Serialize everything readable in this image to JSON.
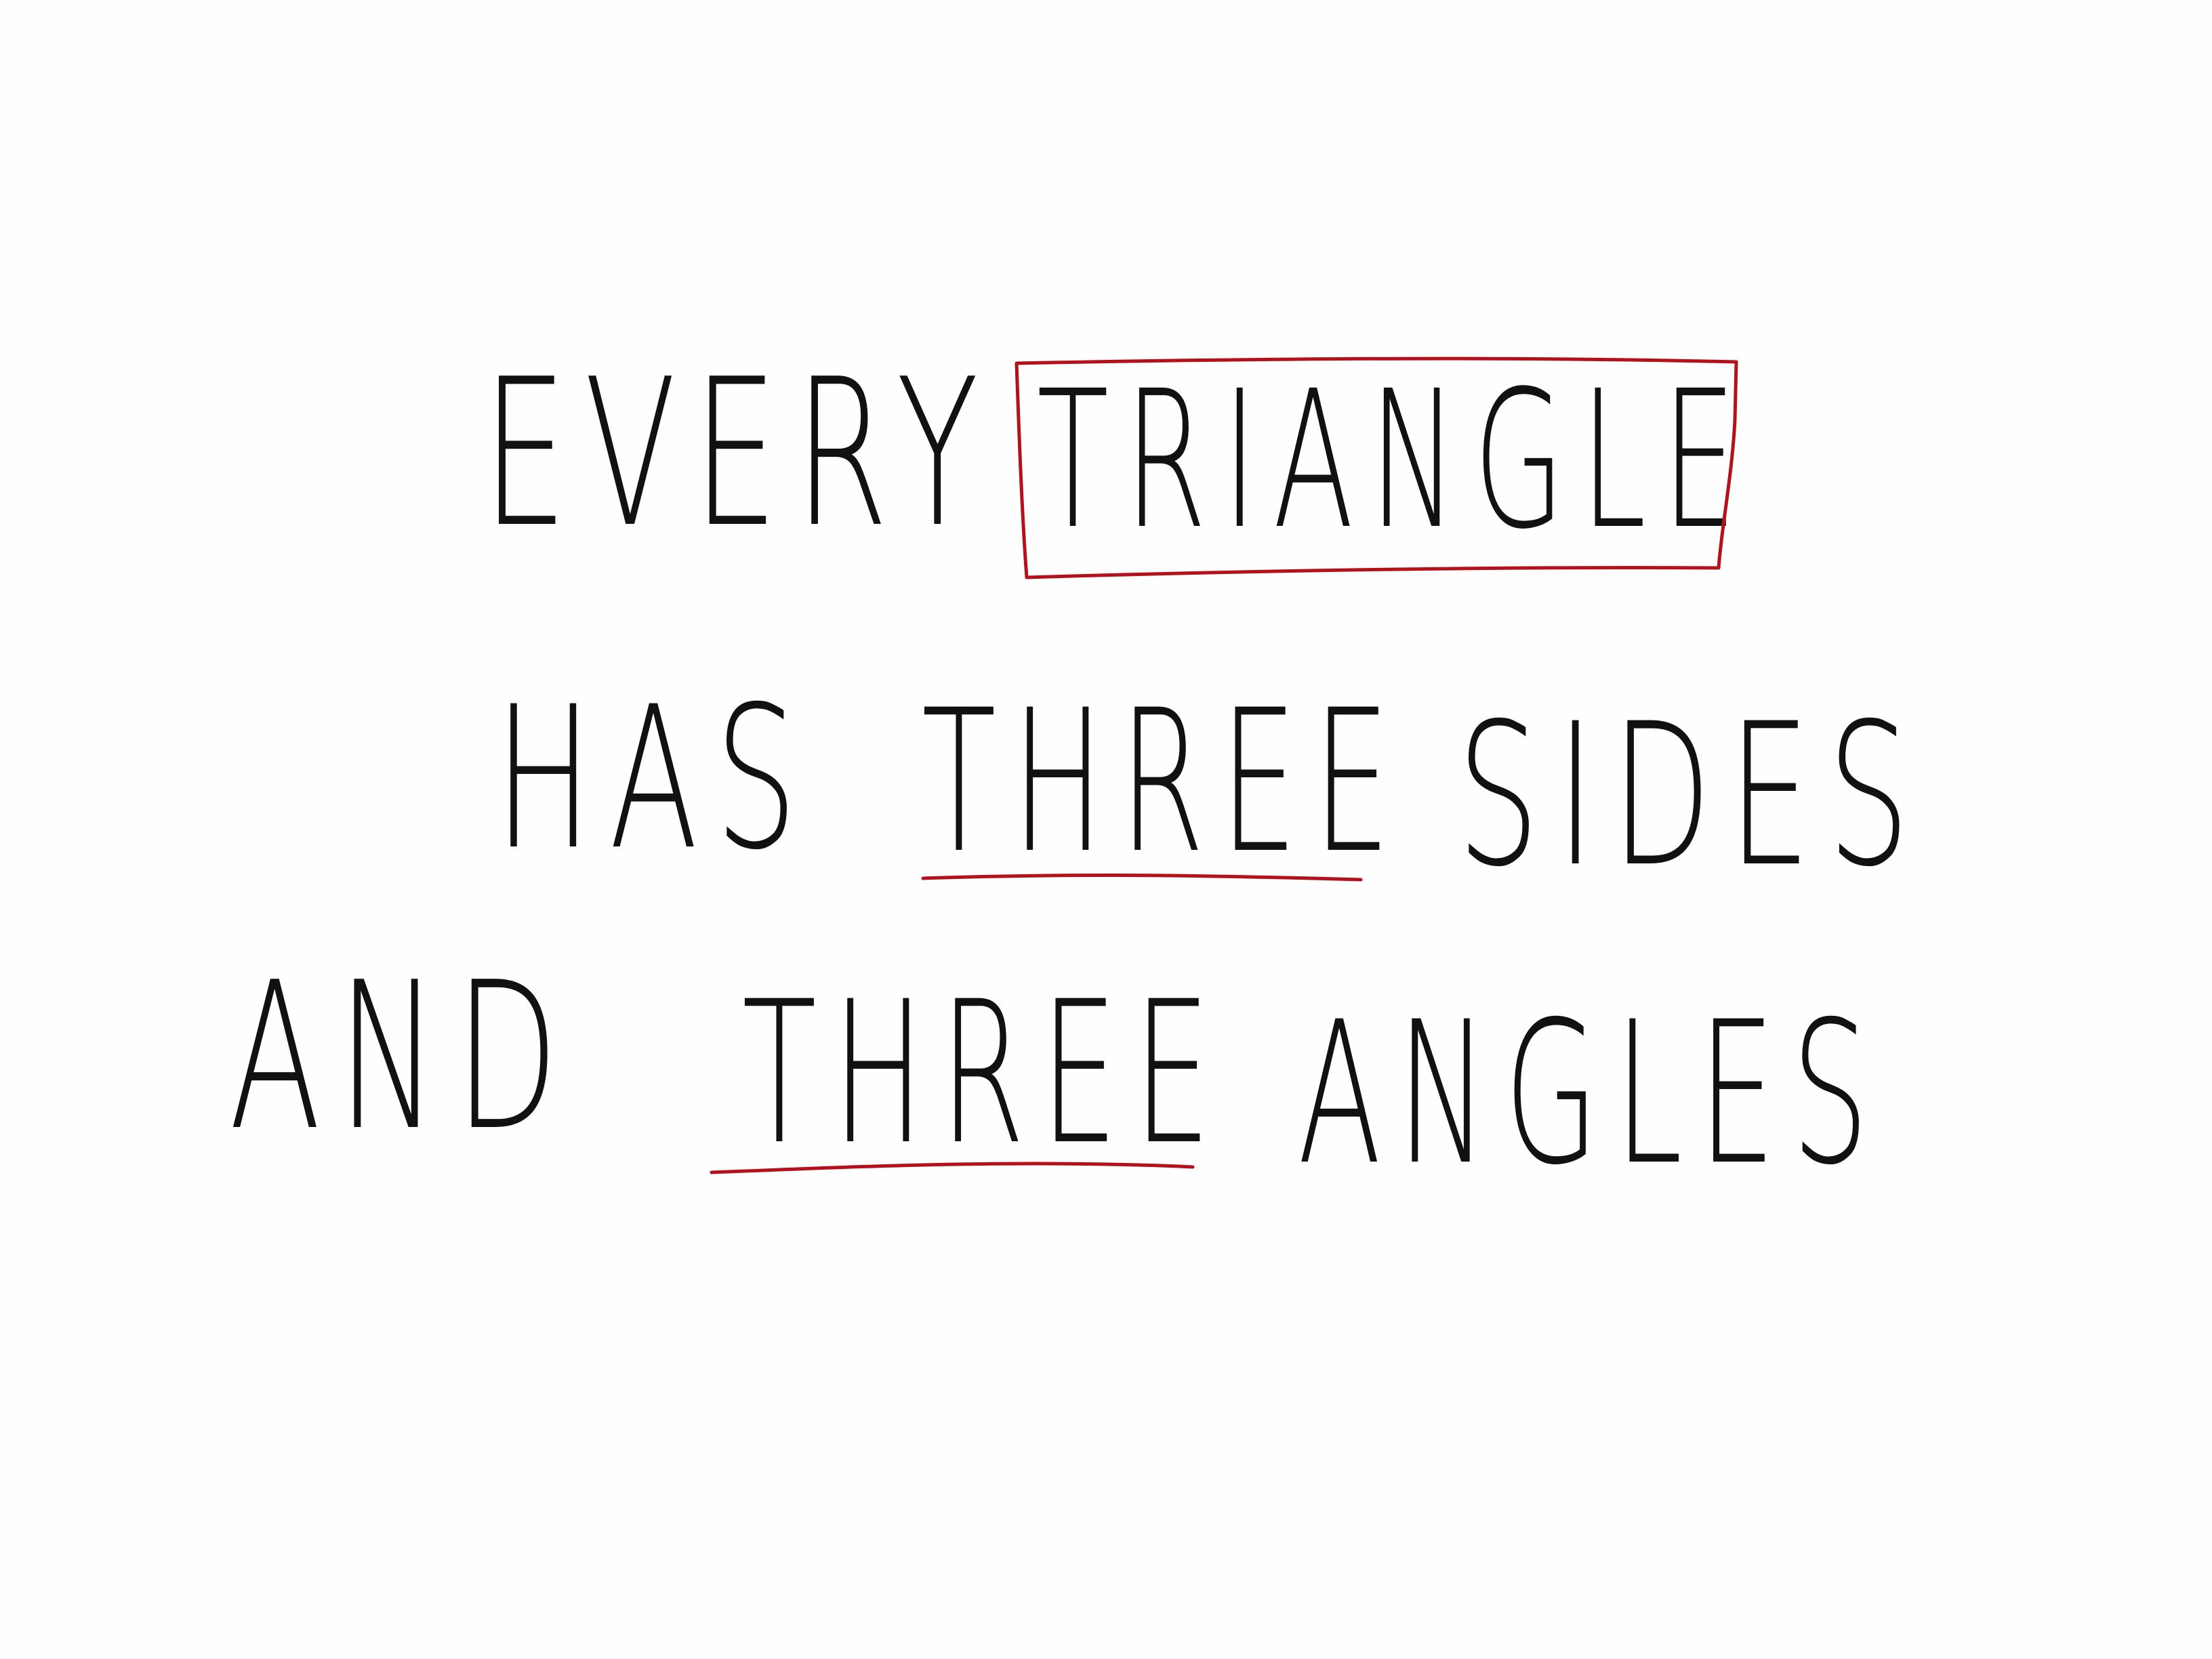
{
  "note": {
    "line1": {
      "word1": "EVERY",
      "word2": "TRIANGLE"
    },
    "line2": {
      "word1": "HAS",
      "word2": "THREE",
      "word3": "SIDES"
    },
    "line3": {
      "word1": "AND",
      "word2": "THREE",
      "word3": "ANGLES"
    }
  },
  "colors": {
    "ink": "#111111",
    "highlight": "#b3121b",
    "paper": "#fefefe"
  }
}
